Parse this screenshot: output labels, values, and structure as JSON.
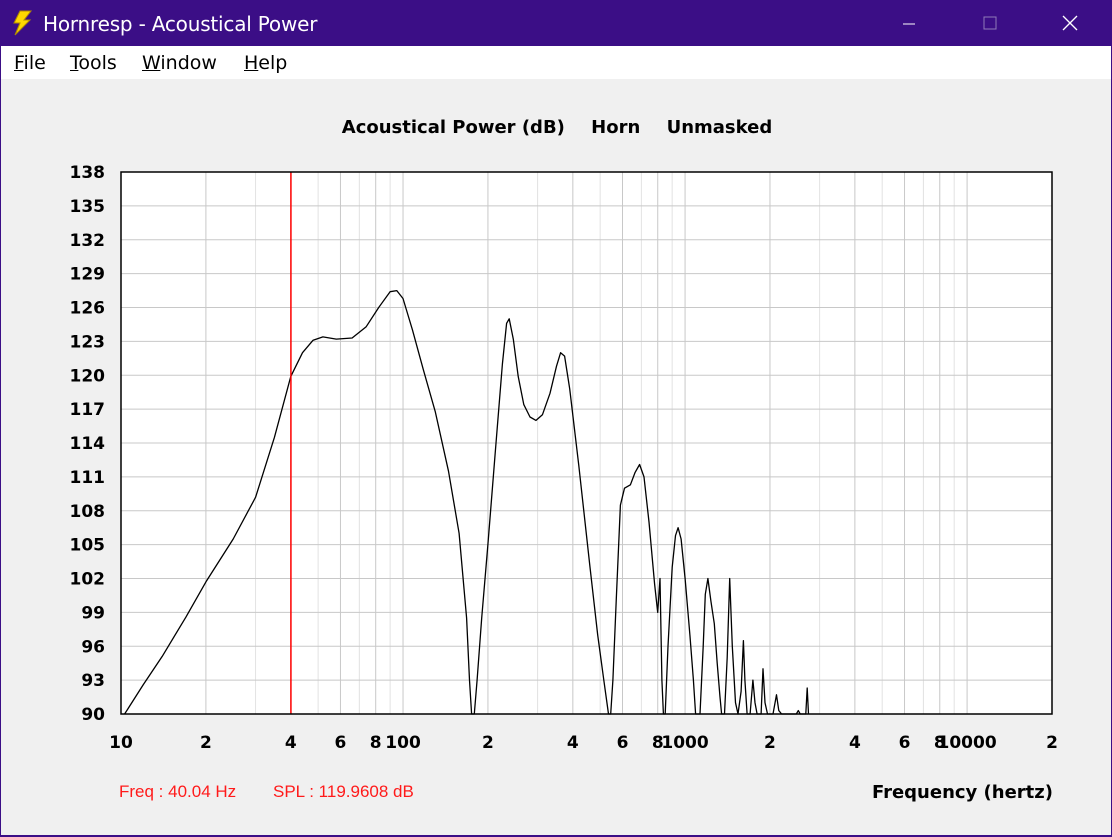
{
  "window": {
    "title": "Hornresp - Acoustical Power",
    "title_bar_color": "#3b0e86",
    "icon": "lightning-bolt-icon"
  },
  "menu": [
    "File",
    "Tools",
    "Window",
    "Help"
  ],
  "chart_data": {
    "type": "line",
    "title_parts": [
      "Acoustical Power (dB)",
      "Horn",
      "Unmasked"
    ],
    "xlabel": "Frequency (hertz)",
    "ylabel": "",
    "x_scale": "log",
    "xlim": [
      10,
      20000
    ],
    "ylim": [
      90,
      138
    ],
    "grid": true,
    "y_ticks": [
      "138",
      "135",
      "132",
      "129",
      "126",
      "123",
      "120",
      "117",
      "114",
      "111",
      "108",
      "105",
      "102",
      "99",
      "96",
      "93",
      "90"
    ],
    "x_tick_labels": [
      {
        "x": 10,
        "label": "10"
      },
      {
        "x": 20,
        "label": "2"
      },
      {
        "x": 40,
        "label": "4"
      },
      {
        "x": 60,
        "label": "6"
      },
      {
        "x": 80,
        "label": "8"
      },
      {
        "x": 100,
        "label": "100"
      },
      {
        "x": 200,
        "label": "2"
      },
      {
        "x": 400,
        "label": "4"
      },
      {
        "x": 600,
        "label": "6"
      },
      {
        "x": 800,
        "label": "8"
      },
      {
        "x": 1000,
        "label": "1000"
      },
      {
        "x": 2000,
        "label": "2"
      },
      {
        "x": 4000,
        "label": "4"
      },
      {
        "x": 6000,
        "label": "6"
      },
      {
        "x": 8000,
        "label": "8"
      },
      {
        "x": 10000,
        "label": "10000"
      },
      {
        "x": 20000,
        "label": "2"
      }
    ],
    "series": [
      {
        "color": "#000000",
        "points": [
          [
            10.3,
            90
          ],
          [
            12,
            92.6
          ],
          [
            14,
            95.1
          ],
          [
            17,
            98.6
          ],
          [
            20,
            101.7
          ],
          [
            25,
            105.5
          ],
          [
            30,
            109.2
          ],
          [
            35,
            114.5
          ],
          [
            40,
            119.9
          ],
          [
            44,
            122
          ],
          [
            48,
            123.1
          ],
          [
            52,
            123.4
          ],
          [
            58,
            123.2
          ],
          [
            66,
            123.3
          ],
          [
            74,
            124.3
          ],
          [
            82,
            126
          ],
          [
            90,
            127.4
          ],
          [
            95,
            127.5
          ],
          [
            100,
            126.8
          ],
          [
            108,
            124
          ],
          [
            118,
            120.5
          ],
          [
            130,
            116.8
          ],
          [
            145,
            111.5
          ],
          [
            158,
            106
          ],
          [
            168,
            98.5
          ],
          [
            172,
            93
          ],
          [
            175,
            90
          ],
          [
            179,
            90
          ],
          [
            183,
            93
          ],
          [
            190,
            98.5
          ],
          [
            200,
            105
          ],
          [
            212,
            113
          ],
          [
            225,
            121
          ],
          [
            233,
            124.6
          ],
          [
            238,
            125
          ],
          [
            246,
            123.2
          ],
          [
            256,
            119.9
          ],
          [
            268,
            117.4
          ],
          [
            282,
            116.3
          ],
          [
            296,
            116
          ],
          [
            312,
            116.5
          ],
          [
            332,
            118.4
          ],
          [
            350,
            120.8
          ],
          [
            362,
            122
          ],
          [
            374,
            121.7
          ],
          [
            390,
            118.8
          ],
          [
            420,
            112
          ],
          [
            460,
            103
          ],
          [
            490,
            97
          ],
          [
            515,
            93
          ],
          [
            535,
            90
          ],
          [
            545,
            90
          ],
          [
            555,
            93
          ],
          [
            570,
            100
          ],
          [
            590,
            108.5
          ],
          [
            610,
            110
          ],
          [
            640,
            110.3
          ],
          [
            665,
            111.4
          ],
          [
            690,
            112.1
          ],
          [
            715,
            111
          ],
          [
            745,
            107
          ],
          [
            780,
            101.5
          ],
          [
            800,
            99
          ],
          [
            815,
            102
          ],
          [
            828,
            93
          ],
          [
            838,
            90
          ],
          [
            850,
            90
          ],
          [
            870,
            96
          ],
          [
            900,
            103
          ],
          [
            925,
            105.8
          ],
          [
            945,
            106.5
          ],
          [
            968,
            105.5
          ],
          [
            1000,
            102
          ],
          [
            1040,
            97
          ],
          [
            1070,
            93
          ],
          [
            1090,
            90
          ],
          [
            1130,
            90
          ],
          [
            1160,
            96
          ],
          [
            1180,
            100.6
          ],
          [
            1205,
            102
          ],
          [
            1235,
            100
          ],
          [
            1270,
            98
          ],
          [
            1300,
            94.5
          ],
          [
            1330,
            91.5
          ],
          [
            1348,
            90
          ],
          [
            1380,
            90
          ],
          [
            1410,
            95
          ],
          [
            1440,
            102
          ],
          [
            1470,
            96
          ],
          [
            1510,
            91
          ],
          [
            1540,
            90
          ],
          [
            1580,
            92
          ],
          [
            1610,
            96.5
          ],
          [
            1630,
            93
          ],
          [
            1660,
            90
          ],
          [
            1700,
            90
          ],
          [
            1740,
            93
          ],
          [
            1770,
            91
          ],
          [
            1800,
            90
          ],
          [
            1860,
            90
          ],
          [
            1890,
            94
          ],
          [
            1920,
            91
          ],
          [
            1960,
            90
          ],
          [
            2050,
            90
          ],
          [
            2110,
            91.7
          ],
          [
            2150,
            90.3
          ],
          [
            2200,
            90
          ],
          [
            2480,
            90
          ],
          [
            2520,
            90.3
          ],
          [
            2560,
            90
          ],
          [
            2680,
            90
          ],
          [
            2710,
            92.3
          ],
          [
            2740,
            90
          ]
        ]
      }
    ],
    "cursor": {
      "freq": 40.04,
      "color": "#ff0000"
    }
  },
  "readout": {
    "freq": "Freq : 40.04 Hz",
    "spl": "SPL : 119.9608 dB"
  }
}
